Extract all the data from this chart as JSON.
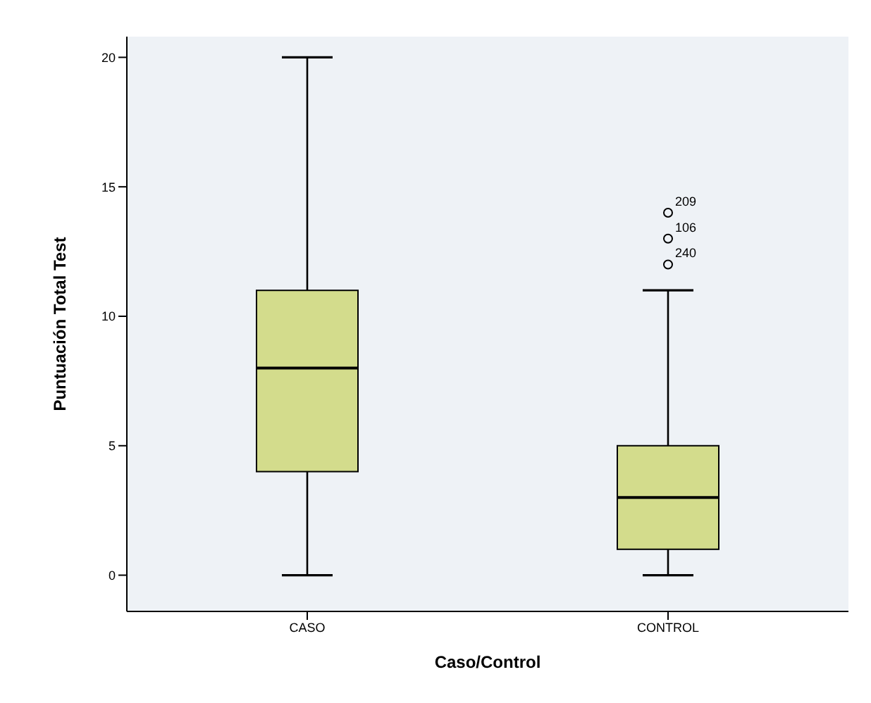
{
  "chart_data": {
    "type": "box",
    "xlabel": "Caso/Control",
    "ylabel": "Puntuación Total Test",
    "categories": [
      "CASO",
      "CONTROL"
    ],
    "boxes": [
      {
        "low": 0,
        "q1": 4,
        "median": 8,
        "q3": 11,
        "high": 20
      },
      {
        "low": 0,
        "q1": 1,
        "median": 3,
        "q3": 5,
        "high": 11,
        "outliers": [
          14,
          13,
          12
        ]
      }
    ],
    "color": "#d3dc8c",
    "ylim": [
      -1.4,
      20.8
    ],
    "yticks": [
      0,
      5,
      10,
      15,
      20
    ],
    "grid": false,
    "legend": false,
    "annotations": [
      "209",
      "106",
      "240"
    ]
  }
}
